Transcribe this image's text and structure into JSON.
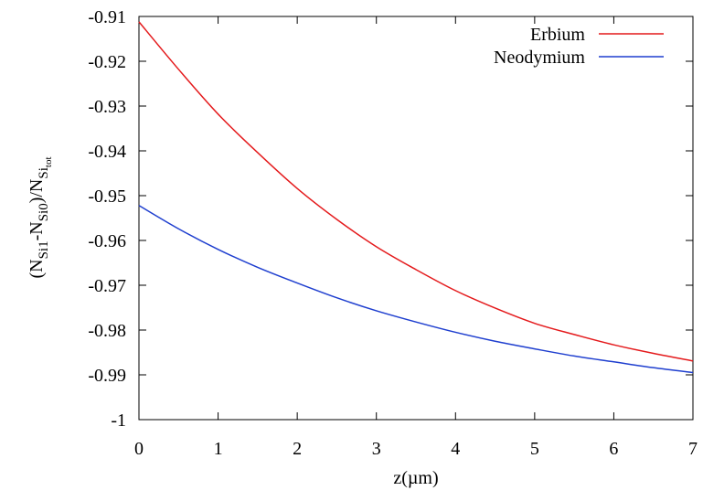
{
  "chart_data": {
    "type": "line",
    "xlabel": "z(µm)",
    "ylabel": {
      "open": "(N",
      "sub1": "Si1",
      "dash": "-N",
      "sub2": "Si0",
      "slash": ")/N",
      "sub3": "Si",
      "subsub3": "tot"
    },
    "xlim": [
      0,
      7
    ],
    "ylim": [
      -1,
      -0.91
    ],
    "xticks": [
      0,
      1,
      2,
      3,
      4,
      5,
      6,
      7
    ],
    "yticks": [
      -1,
      -0.99,
      -0.98,
      -0.97,
      -0.96,
      -0.95,
      -0.94,
      -0.93,
      -0.92,
      -0.91
    ],
    "xtick_labels": [
      "0",
      "1",
      "2",
      "3",
      "4",
      "5",
      "6",
      "7"
    ],
    "ytick_labels": [
      "-1",
      "-0.99",
      "-0.98",
      "-0.97",
      "-0.96",
      "-0.95",
      "-0.94",
      "-0.93",
      "-0.92",
      "-0.91"
    ],
    "grid": false,
    "legend_position": "top-right",
    "series": [
      {
        "name": "Erbium",
        "color": "#e41a1c",
        "x": [
          0,
          0.5,
          1,
          1.5,
          2,
          2.5,
          3,
          3.5,
          4,
          4.5,
          5,
          5.5,
          6,
          6.5,
          7
        ],
        "y": [
          -0.9112,
          -0.9218,
          -0.9318,
          -0.9404,
          -0.9484,
          -0.9553,
          -0.9614,
          -0.9665,
          -0.9712,
          -0.9751,
          -0.9785,
          -0.981,
          -0.9833,
          -0.9852,
          -0.9869
        ]
      },
      {
        "name": "Neodymium",
        "color": "#1f3fcf",
        "x": [
          0,
          0.5,
          1,
          1.5,
          2,
          2.5,
          3,
          3.5,
          4,
          4.5,
          5,
          5.5,
          6,
          6.5,
          7
        ],
        "y": [
          -0.9522,
          -0.9574,
          -0.962,
          -0.966,
          -0.9695,
          -0.9728,
          -0.9757,
          -0.9782,
          -0.9805,
          -0.9825,
          -0.9842,
          -0.9858,
          -0.9871,
          -0.9884,
          -0.9895
        ]
      }
    ]
  }
}
